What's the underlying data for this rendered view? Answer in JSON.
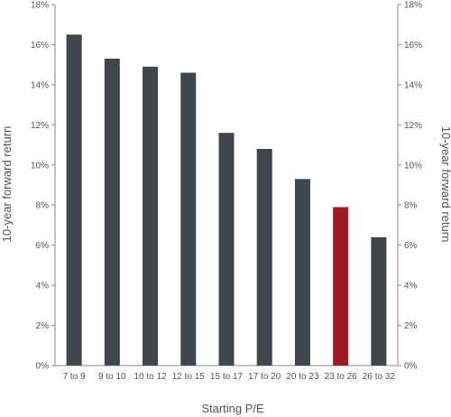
{
  "chart_data": {
    "type": "bar",
    "categories": [
      "7 to 9",
      "9 to 10",
      "10 to 12",
      "12 to 15",
      "15 to 17",
      "17 to 20",
      "20 to 23",
      "23 to 26",
      "26 to 32"
    ],
    "values": [
      16.5,
      15.3,
      14.9,
      14.6,
      11.6,
      10.8,
      9.3,
      7.9,
      6.4
    ],
    "highlight_index": 7,
    "xlabel": "Starting P/E",
    "ylabel": "10-year forward return",
    "ylabel_right": "10-year forward return",
    "ylim": [
      0,
      18
    ],
    "yticks": [
      0,
      2,
      4,
      6,
      8,
      10,
      12,
      14,
      16,
      18
    ],
    "ytick_labels": [
      "0%",
      "2%",
      "4%",
      "6%",
      "8%",
      "10%",
      "12%",
      "14%",
      "16%",
      "18%"
    ],
    "grid": false,
    "colors": {
      "bar": "#3f474d",
      "highlight": "#9e1b24",
      "axis": "#888888",
      "text": "#555555"
    }
  }
}
